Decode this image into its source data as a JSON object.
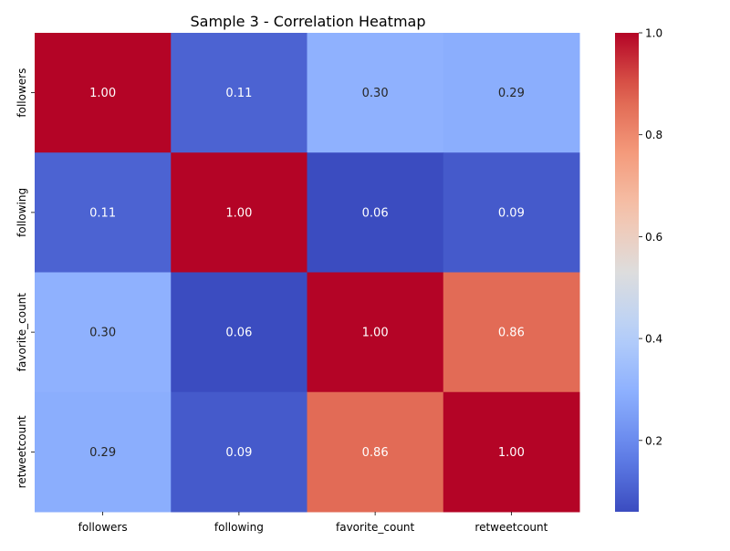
{
  "chart_data": {
    "type": "heatmap",
    "title": "Sample 3 - Correlation Heatmap",
    "xlabel": "",
    "ylabel": "",
    "x_categories": [
      "followers",
      "following",
      "favorite_count",
      "retweetcount"
    ],
    "y_categories": [
      "followers",
      "following",
      "favorite_count",
      "retweetcount"
    ],
    "values": [
      [
        1.0,
        0.11,
        0.3,
        0.29
      ],
      [
        0.11,
        1.0,
        0.06,
        0.09
      ],
      [
        0.3,
        0.06,
        1.0,
        0.86
      ],
      [
        0.29,
        0.09,
        0.86,
        1.0
      ]
    ],
    "cell_labels": [
      [
        "1.00",
        "0.11",
        "0.30",
        "0.29"
      ],
      [
        "0.11",
        "1.00",
        "0.06",
        "0.09"
      ],
      [
        "0.30",
        "0.06",
        "1.00",
        "0.86"
      ],
      [
        "0.29",
        "0.09",
        "0.86",
        "1.00"
      ]
    ],
    "colormap": "coolwarm",
    "colorbar": {
      "range": [
        0.06,
        1.0
      ],
      "ticks": [
        0.2,
        0.4,
        0.6,
        0.8,
        1.0
      ],
      "tick_labels": [
        "0.2",
        "0.4",
        "0.6",
        "0.8",
        "1.0"
      ]
    },
    "grid": false,
    "legend": "colorbar-right"
  }
}
